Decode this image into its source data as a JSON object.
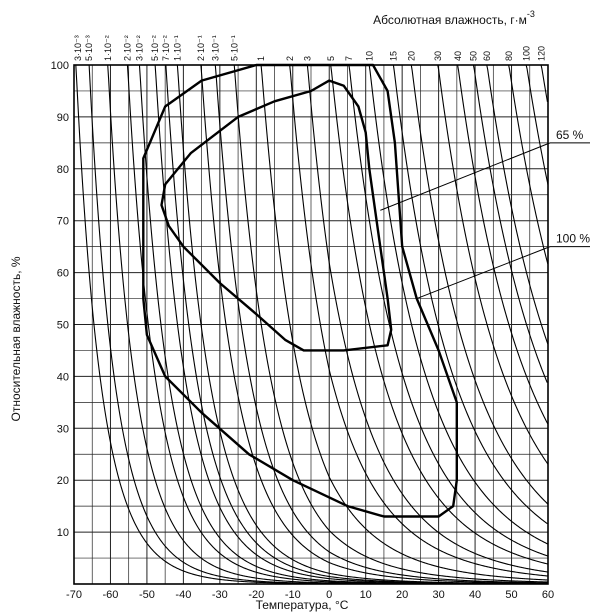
{
  "chart_data": {
    "type": "line",
    "xlabel": "Температура, °C",
    "ylabel": "Относительная влажность, %",
    "top_label": "Абсолютная влажность, г·м",
    "top_label_exp": "-3",
    "xlim": [
      -70,
      60
    ],
    "ylim": [
      0,
      100
    ],
    "x_ticks": [
      "-70",
      "-60",
      "-50",
      "-40",
      "-30",
      "-20",
      "-10",
      "0",
      "10",
      "20",
      "30",
      "40",
      "50",
      "60"
    ],
    "y_ticks": [
      "10",
      "20",
      "30",
      "40",
      "50",
      "60",
      "70",
      "80",
      "90",
      "100"
    ],
    "grid": true,
    "abs_humidity_curves": [
      {
        "label": "3·10⁻³",
        "value": 0.003
      },
      {
        "label": "5·10⁻³",
        "value": 0.005
      },
      {
        "label": "1·10⁻²",
        "value": 0.01
      },
      {
        "label": "2·10⁻²",
        "value": 0.02
      },
      {
        "label": "3·10⁻²",
        "value": 0.03
      },
      {
        "label": "5·10⁻²",
        "value": 0.05
      },
      {
        "label": "7·10⁻²",
        "value": 0.07
      },
      {
        "label": "1·10⁻¹",
        "value": 0.1
      },
      {
        "label": "2·10⁻¹",
        "value": 0.2
      },
      {
        "label": "3·10⁻¹",
        "value": 0.3
      },
      {
        "label": "5·10⁻¹",
        "value": 0.5
      },
      {
        "label": "1",
        "value": 1
      },
      {
        "label": "2",
        "value": 2
      },
      {
        "label": "3",
        "value": 3
      },
      {
        "label": "5",
        "value": 5
      },
      {
        "label": "7",
        "value": 7
      },
      {
        "label": "10",
        "value": 10
      },
      {
        "label": "15",
        "value": 15
      },
      {
        "label": "20",
        "value": 20
      },
      {
        "label": "30",
        "value": 30
      },
      {
        "label": "40",
        "value": 40
      },
      {
        "label": "50",
        "value": 50
      },
      {
        "label": "60",
        "value": 60
      },
      {
        "label": "80",
        "value": 80
      },
      {
        "label": "100",
        "value": 100
      },
      {
        "label": "120",
        "value": 120
      }
    ],
    "series": [
      {
        "name": "100 %",
        "points": [
          [
            -20,
            100
          ],
          [
            12,
            100
          ],
          [
            16,
            95
          ],
          [
            18,
            85
          ],
          [
            20,
            65
          ],
          [
            24,
            55
          ],
          [
            30,
            45
          ],
          [
            35,
            35
          ],
          [
            35,
            20
          ],
          [
            34,
            15
          ],
          [
            30,
            13
          ],
          [
            15,
            13
          ],
          [
            5,
            15
          ],
          [
            -10,
            20
          ],
          [
            -22,
            25
          ],
          [
            -35,
            33
          ],
          [
            -45,
            40
          ],
          [
            -50,
            48
          ],
          [
            -51,
            55
          ],
          [
            -51,
            82
          ],
          [
            -45,
            92
          ],
          [
            -35,
            97
          ],
          [
            -20,
            100
          ]
        ]
      },
      {
        "name": "65 %",
        "points": [
          [
            -5,
            95
          ],
          [
            0,
            97
          ],
          [
            4,
            96
          ],
          [
            8,
            92
          ],
          [
            10,
            87
          ],
          [
            11,
            80
          ],
          [
            13,
            70
          ],
          [
            16,
            55
          ],
          [
            17,
            49
          ],
          [
            16,
            46
          ],
          [
            4,
            45
          ],
          [
            -7,
            45
          ],
          [
            -12,
            47
          ],
          [
            -20,
            52
          ],
          [
            -30,
            58
          ],
          [
            -40,
            65
          ],
          [
            -44,
            69
          ],
          [
            -46,
            73
          ],
          [
            -45,
            77
          ],
          [
            -38,
            83
          ],
          [
            -25,
            90
          ],
          [
            -15,
            93
          ],
          [
            -5,
            95
          ]
        ]
      }
    ],
    "annotations": [
      {
        "text": "65 %",
        "x": 14,
        "y": 72,
        "label_y": 85
      },
      {
        "text": "100 %",
        "x": 24,
        "y": 55,
        "label_y": 65
      }
    ]
  }
}
